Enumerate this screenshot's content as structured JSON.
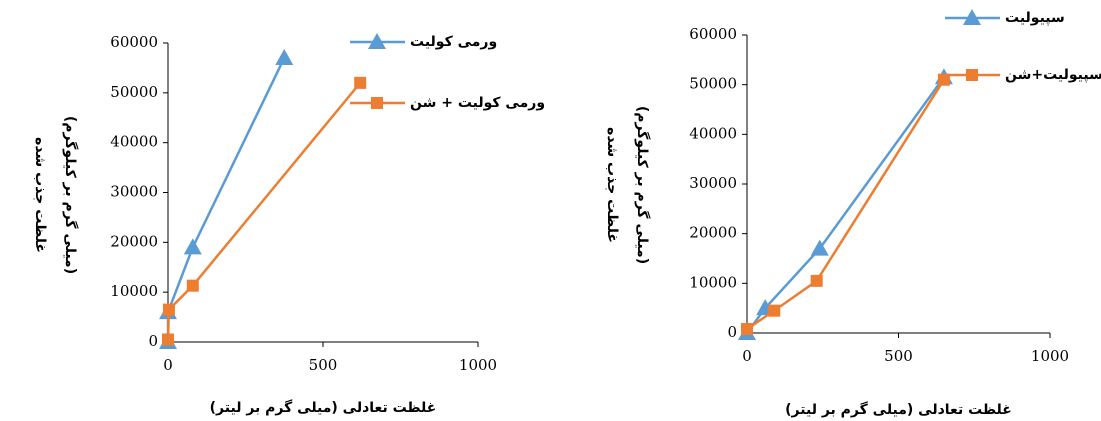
{
  "chart_data": [
    {
      "type": "line",
      "xlabel": "غلظت تعادلی (میلی گرم بر لیتر)",
      "ylabel": [
        "غلظت جذب شده",
        "(میلی گرم بر کیلوگرم)"
      ],
      "xlim": [
        0,
        1000
      ],
      "xticks": [
        0,
        500,
        1000
      ],
      "ylim": [
        0,
        60000
      ],
      "yticks": [
        0,
        10000,
        20000,
        30000,
        40000,
        50000,
        60000
      ],
      "series": [
        {
          "name": "ورمی کولیت",
          "color": "#5b9bd5",
          "marker": "triangle",
          "x": [
            0,
            0,
            80,
            375
          ],
          "values": [
            0,
            6000,
            19000,
            57000
          ]
        },
        {
          "name": "ورمی کولیت + شن",
          "color": "#ed7d31",
          "marker": "square",
          "x": [
            0,
            3,
            80,
            620
          ],
          "values": [
            500,
            6500,
            11300,
            52000
          ]
        }
      ]
    },
    {
      "type": "line",
      "xlabel": "غلظت تعادلی (میلی گرم بر لیتر)",
      "ylabel": [
        "غلظت جذب شده",
        "(میلی گرم بر کیلوگرم)"
      ],
      "xlim": [
        0,
        1000
      ],
      "xticks": [
        0,
        500,
        1000
      ],
      "ylim": [
        0,
        60000
      ],
      "yticks": [
        0,
        10000,
        20000,
        30000,
        40000,
        50000,
        60000
      ],
      "series": [
        {
          "name": "سپیولیت",
          "color": "#5b9bd5",
          "marker": "triangle",
          "x": [
            0,
            60,
            240,
            650
          ],
          "values": [
            0,
            5000,
            17000,
            51500
          ]
        },
        {
          "name": "سپیولیت+شن",
          "color": "#ed7d31",
          "marker": "square",
          "x": [
            0,
            90,
            230,
            650
          ],
          "values": [
            800,
            4500,
            10500,
            51000
          ]
        }
      ]
    }
  ]
}
